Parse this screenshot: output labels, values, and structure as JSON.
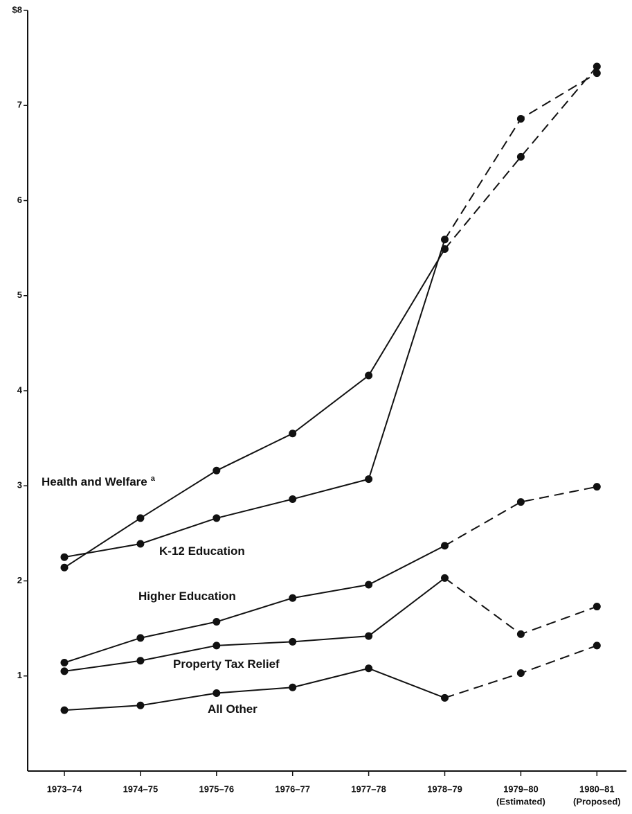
{
  "chart_data": {
    "type": "line",
    "categories": [
      "1973–74",
      "1974–75",
      "1975–76",
      "1976–77",
      "1977–78",
      "1978–79",
      "1979–80",
      "1980–81"
    ],
    "category_notes": [
      null,
      null,
      null,
      null,
      null,
      null,
      "(Estimated)",
      "(Proposed)"
    ],
    "series": [
      {
        "name": "Health and Welfare",
        "footnote_marker": "a",
        "color": "#111111",
        "values": [
          2.14,
          2.66,
          3.16,
          3.55,
          4.16,
          5.49,
          6.46,
          7.41
        ]
      },
      {
        "name": "K-12 Education",
        "color": "#111111",
        "values": [
          2.25,
          2.39,
          2.66,
          2.86,
          3.07,
          5.59,
          6.86,
          7.34
        ]
      },
      {
        "name": "Higher Education",
        "color": "#111111",
        "values": [
          1.14,
          1.4,
          1.57,
          1.82,
          1.96,
          2.37,
          2.83,
          2.99
        ]
      },
      {
        "name": "Property Tax Relief",
        "color": "#111111",
        "values": [
          1.05,
          1.16,
          1.32,
          1.36,
          1.42,
          2.03,
          1.44,
          1.73
        ]
      },
      {
        "name": "All Other",
        "color": "#111111",
        "values": [
          0.64,
          0.69,
          0.82,
          0.88,
          1.08,
          0.77,
          1.03,
          1.32
        ]
      }
    ],
    "ylim": [
      0,
      8
    ],
    "yticks": [
      1,
      2,
      3,
      4,
      5,
      6,
      7,
      {
        "value": 8,
        "label": "$8"
      }
    ],
    "grid": false
  }
}
